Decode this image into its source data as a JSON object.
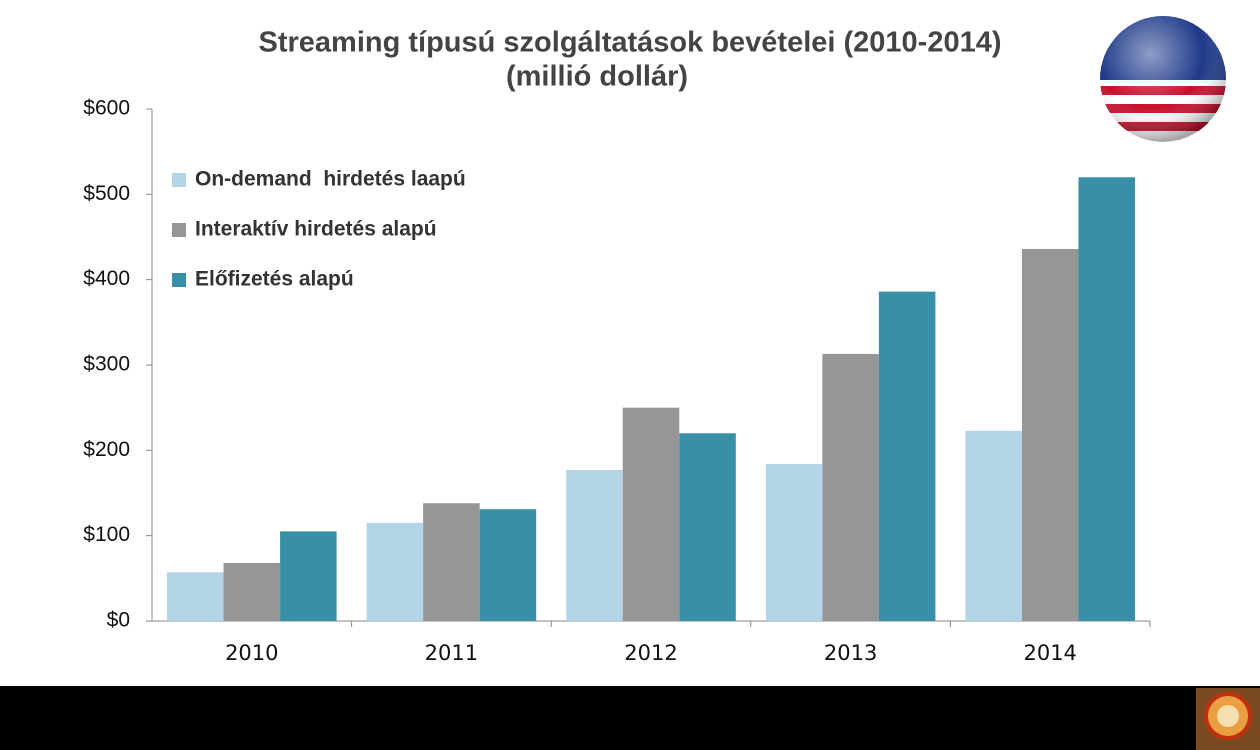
{
  "chart_data": {
    "type": "bar",
    "title": "Streaming típusú szolgáltatások bevételei (2010-2014)",
    "subtitle": "(millió dollár)",
    "categories": [
      "2010",
      "2011",
      "2012",
      "2013",
      "2014"
    ],
    "series": [
      {
        "name": "On-demand  hirdetés laapú",
        "color": "#b4d5e8",
        "values": [
          57,
          115,
          177,
          184,
          223
        ]
      },
      {
        "name": "Interaktív hirdetés alapú",
        "color": "#969696",
        "values": [
          68,
          138,
          250,
          313,
          436
        ]
      },
      {
        "name": "Előfizetés alapú",
        "color": "#3a8fa8",
        "values": [
          105,
          131,
          220,
          386,
          520
        ]
      }
    ],
    "ylim": [
      0,
      600
    ],
    "yticks": [
      {
        "value": 0,
        "label": "$0"
      },
      {
        "value": 100,
        "label": "$100"
      },
      {
        "value": 200,
        "label": "$200"
      },
      {
        "value": 300,
        "label": "$300"
      },
      {
        "value": 400,
        "label": "$400"
      },
      {
        "value": 500,
        "label": "$500"
      },
      {
        "value": 600,
        "label": "$600"
      }
    ],
    "legend": "upper-left",
    "grid": false
  }
}
